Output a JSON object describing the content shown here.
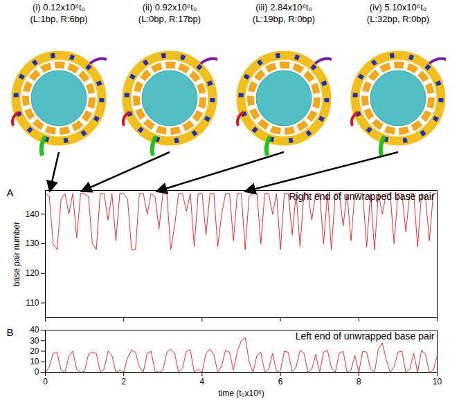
{
  "chart_data": [
    {
      "type": "line",
      "panel_label": "A",
      "title": "Right end of unwrapped base pair",
      "y_label": "base pair number",
      "color": "#e8141b",
      "xlim": [
        0,
        10
      ],
      "xticks": [
        0,
        2,
        4,
        6,
        8,
        10
      ],
      "ylim": [
        105,
        148
      ],
      "yticks": [
        110,
        120,
        130,
        140
      ],
      "tick_labels": "y",
      "annotations": [
        {
          "x": 0.12,
          "label": "(i) 0.12x10⁶t₀",
          "detail": "(L:1bp, R:6bp)"
        },
        {
          "x": 0.92,
          "label": "(ii) 0.92x10⁶t₀",
          "detail": "(L:0bp, R:17bp)"
        },
        {
          "x": 2.84,
          "label": "(iii) 2.84x10⁶t₀",
          "detail": "(L:19bp, R:0bp)"
        },
        {
          "x": 5.1,
          "label": "(iv) 5.10x10⁶t₀",
          "detail": "(L:32bp, R:0bp)"
        }
      ],
      "x": [
        0,
        0.1,
        0.2,
        0.3,
        0.4,
        0.5,
        0.6,
        0.7,
        0.8,
        0.9,
        1,
        1.1,
        1.2,
        1.3,
        1.4,
        1.5,
        1.6,
        1.7,
        1.8,
        1.9,
        2,
        2.1,
        2.2,
        2.3,
        2.4,
        2.5,
        2.6,
        2.7,
        2.8,
        2.9,
        3,
        3.1,
        3.2,
        3.3,
        3.4,
        3.5,
        3.6,
        3.7,
        3.8,
        3.9,
        4,
        4.1,
        4.2,
        4.3,
        4.4,
        4.5,
        4.6,
        4.7,
        4.8,
        4.9,
        5,
        5.1,
        5.2,
        5.3,
        5.4,
        5.5,
        5.6,
        5.7,
        5.8,
        5.9,
        6,
        6.1,
        6.2,
        6.3,
        6.4,
        6.5,
        6.6,
        6.7,
        6.8,
        6.9,
        7,
        7.1,
        7.2,
        7.3,
        7.4,
        7.5,
        7.6,
        7.7,
        7.8,
        7.9,
        8,
        8.1,
        8.2,
        8.3,
        8.4,
        8.5,
        8.6,
        8.7,
        8.8,
        8.9,
        9,
        9.1,
        9.2,
        9.3,
        9.4,
        9.5,
        9.6,
        9.7,
        9.8,
        9.9,
        10
      ],
      "values": [
        147,
        146,
        130,
        128,
        145,
        147,
        140,
        147,
        132,
        147,
        147,
        146,
        130,
        128,
        147,
        147,
        138,
        147,
        131,
        147,
        147,
        145,
        128,
        128,
        147,
        147,
        140,
        147,
        146,
        135,
        147,
        147,
        128,
        136,
        147,
        147,
        141,
        147,
        129,
        147,
        147,
        133,
        147,
        147,
        129,
        140,
        147,
        147,
        131,
        147,
        147,
        128,
        146,
        147,
        147,
        130,
        147,
        147,
        140,
        147,
        128,
        147,
        147,
        133,
        147,
        129,
        147,
        147,
        138,
        147,
        147,
        130,
        147,
        128,
        147,
        147,
        136,
        147,
        131,
        147,
        147,
        147,
        129,
        147,
        128,
        147,
        140,
        147,
        147,
        130,
        147,
        147,
        134,
        147,
        147,
        129,
        147,
        146,
        131,
        147,
        147
      ]
    },
    {
      "type": "line",
      "panel_label": "B",
      "title": "Left end of unwrapped base pair",
      "x_label": "time (t₀x10⁶)",
      "color": "#e8141b",
      "xlim": [
        0,
        10
      ],
      "xticks": [
        0,
        2,
        4,
        6,
        8,
        10
      ],
      "ylim": [
        0,
        40
      ],
      "yticks": [
        0,
        10,
        20,
        30,
        40
      ],
      "x": [
        0,
        0.1,
        0.2,
        0.3,
        0.4,
        0.5,
        0.6,
        0.7,
        0.8,
        0.9,
        1,
        1.1,
        1.2,
        1.3,
        1.4,
        1.5,
        1.6,
        1.7,
        1.8,
        1.9,
        2,
        2.1,
        2.2,
        2.3,
        2.4,
        2.5,
        2.6,
        2.7,
        2.8,
        2.9,
        3,
        3.1,
        3.2,
        3.3,
        3.4,
        3.5,
        3.6,
        3.7,
        3.8,
        3.9,
        4,
        4.1,
        4.2,
        4.3,
        4.4,
        4.5,
        4.6,
        4.7,
        4.8,
        4.9,
        5,
        5.1,
        5.2,
        5.3,
        5.4,
        5.5,
        5.6,
        5.7,
        5.8,
        5.9,
        6,
        6.1,
        6.2,
        6.3,
        6.4,
        6.5,
        6.6,
        6.7,
        6.8,
        6.9,
        7,
        7.1,
        7.2,
        7.3,
        7.4,
        7.5,
        7.6,
        7.7,
        7.8,
        7.9,
        8,
        8.1,
        8.2,
        8.3,
        8.4,
        8.5,
        8.6,
        8.7,
        8.8,
        8.9,
        9,
        9.1,
        9.2,
        9.3,
        9.4,
        9.5,
        9.6,
        9.7,
        9.8,
        9.9,
        10
      ],
      "values": [
        0,
        5,
        18,
        19,
        2,
        0,
        15,
        20,
        3,
        0,
        1,
        17,
        19,
        18,
        0,
        3,
        20,
        16,
        0,
        2,
        0,
        14,
        21,
        19,
        5,
        0,
        18,
        20,
        1,
        0,
        2,
        19,
        22,
        18,
        0,
        4,
        20,
        21,
        0,
        3,
        0,
        18,
        22,
        17,
        0,
        6,
        21,
        19,
        2,
        20,
        30,
        33,
        10,
        0,
        16,
        19,
        0,
        3,
        18,
        0,
        2,
        20,
        19,
        0,
        5,
        21,
        18,
        0,
        3,
        17,
        0,
        19,
        21,
        4,
        0,
        18,
        20,
        0,
        2,
        16,
        0,
        20,
        19,
        3,
        0,
        22,
        28,
        12,
        0,
        5,
        19,
        20,
        0,
        3,
        18,
        0,
        21,
        17,
        0,
        2,
        16
      ]
    }
  ]
}
